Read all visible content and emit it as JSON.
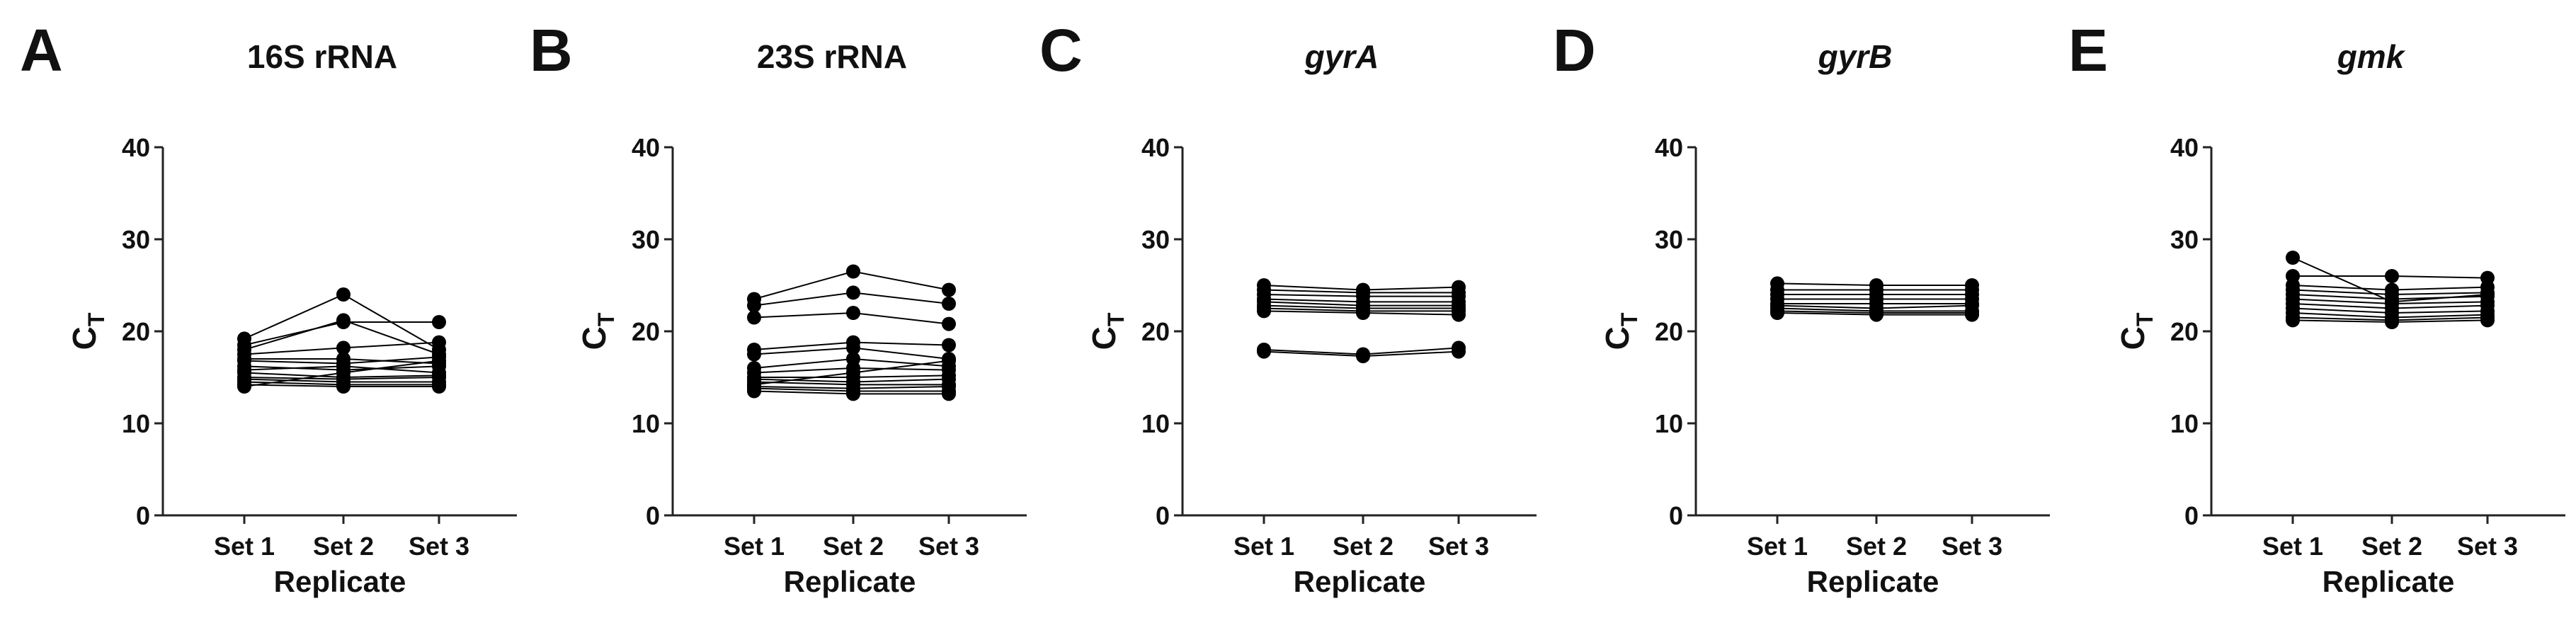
{
  "figure": {
    "panels": [
      {
        "letter": "A",
        "title": "16S rRNA",
        "italic": false
      },
      {
        "letter": "B",
        "title": "23S rRNA",
        "italic": false
      },
      {
        "letter": "C",
        "title": "gyrA",
        "italic": true
      },
      {
        "letter": "D",
        "title": "gyrB",
        "italic": true
      },
      {
        "letter": "E",
        "title": "gmk",
        "italic": true
      }
    ]
  },
  "chart_data": [
    {
      "type": "line",
      "title": "16S rRNA",
      "xlabel": "Replicate",
      "ylabel": "CT",
      "ylabel_main": "C",
      "ylabel_sub": "T",
      "categories": [
        "Set 1",
        "Set 2",
        "Set 3"
      ],
      "ylim": [
        0,
        40
      ],
      "yticks": [
        0,
        10,
        20,
        30,
        40
      ],
      "grid": false,
      "legend": "none",
      "marker_color": "#000000",
      "series": [
        {
          "values": [
            19.2,
            24.0,
            18.0
          ]
        },
        {
          "values": [
            18.5,
            21.0,
            21.0
          ]
        },
        {
          "values": [
            18.0,
            21.2,
            17.5
          ]
        },
        {
          "values": [
            17.5,
            18.2,
            18.8
          ]
        },
        {
          "values": [
            17.0,
            17.0,
            16.5
          ]
        },
        {
          "values": [
            16.8,
            16.5,
            17.2
          ]
        },
        {
          "values": [
            16.2,
            15.8,
            16.2
          ]
        },
        {
          "values": [
            15.8,
            16.2,
            15.5
          ]
        },
        {
          "values": [
            15.5,
            15.0,
            15.2
          ]
        },
        {
          "values": [
            15.0,
            14.8,
            15.0
          ]
        },
        {
          "values": [
            14.8,
            14.5,
            14.5
          ]
        },
        {
          "values": [
            14.5,
            14.2,
            14.2
          ]
        },
        {
          "values": [
            14.2,
            14.0,
            14.0
          ]
        },
        {
          "values": [
            14.0,
            15.5,
            16.8
          ]
        }
      ]
    },
    {
      "type": "line",
      "title": "23S rRNA",
      "xlabel": "Replicate",
      "ylabel": "CT",
      "ylabel_main": "C",
      "ylabel_sub": "T",
      "categories": [
        "Set 1",
        "Set 2",
        "Set 3"
      ],
      "ylim": [
        0,
        40
      ],
      "yticks": [
        0,
        10,
        20,
        30,
        40
      ],
      "grid": false,
      "legend": "none",
      "marker_color": "#000000",
      "series": [
        {
          "values": [
            23.5,
            26.5,
            24.5
          ]
        },
        {
          "values": [
            22.8,
            24.2,
            23.0
          ]
        },
        {
          "values": [
            21.5,
            22.0,
            20.8
          ]
        },
        {
          "values": [
            18.0,
            18.8,
            18.5
          ]
        },
        {
          "values": [
            17.5,
            18.2,
            17.0
          ]
        },
        {
          "values": [
            16.0,
            17.0,
            16.2
          ]
        },
        {
          "values": [
            15.5,
            16.0,
            15.8
          ]
        },
        {
          "values": [
            15.0,
            15.0,
            15.2
          ]
        },
        {
          "values": [
            14.8,
            14.5,
            14.8
          ]
        },
        {
          "values": [
            14.5,
            14.2,
            14.2
          ]
        },
        {
          "values": [
            14.0,
            13.8,
            14.0
          ]
        },
        {
          "values": [
            13.8,
            13.5,
            13.5
          ]
        },
        {
          "values": [
            13.5,
            13.2,
            13.2
          ]
        },
        {
          "values": [
            14.2,
            15.5,
            16.8
          ]
        }
      ]
    },
    {
      "type": "line",
      "title": "gyrA",
      "xlabel": "Replicate",
      "ylabel": "CT",
      "ylabel_main": "C",
      "ylabel_sub": "T",
      "categories": [
        "Set 1",
        "Set 2",
        "Set 3"
      ],
      "ylim": [
        0,
        40
      ],
      "yticks": [
        0,
        10,
        20,
        30,
        40
      ],
      "grid": false,
      "legend": "none",
      "marker_color": "#000000",
      "series": [
        {
          "values": [
            25.0,
            24.5,
            24.8
          ]
        },
        {
          "values": [
            24.5,
            24.2,
            24.2
          ]
        },
        {
          "values": [
            24.0,
            23.8,
            23.8
          ]
        },
        {
          "values": [
            23.5,
            23.2,
            23.2
          ]
        },
        {
          "values": [
            23.2,
            22.8,
            22.8
          ]
        },
        {
          "values": [
            22.8,
            22.5,
            22.5
          ]
        },
        {
          "values": [
            22.5,
            22.2,
            22.2
          ]
        },
        {
          "values": [
            22.2,
            22.0,
            21.8
          ]
        },
        {
          "values": [
            18.0,
            17.5,
            18.2
          ]
        },
        {
          "values": [
            17.8,
            17.3,
            17.8
          ]
        }
      ]
    },
    {
      "type": "line",
      "title": "gyrB",
      "xlabel": "Replicate",
      "ylabel": "CT",
      "ylabel_main": "C",
      "ylabel_sub": "T",
      "categories": [
        "Set 1",
        "Set 2",
        "Set 3"
      ],
      "ylim": [
        0,
        40
      ],
      "yticks": [
        0,
        10,
        20,
        30,
        40
      ],
      "grid": false,
      "legend": "none",
      "marker_color": "#000000",
      "series": [
        {
          "values": [
            25.2,
            25.0,
            25.0
          ]
        },
        {
          "values": [
            24.5,
            24.5,
            24.5
          ]
        },
        {
          "values": [
            24.0,
            24.0,
            24.0
          ]
        },
        {
          "values": [
            23.5,
            23.5,
            23.5
          ]
        },
        {
          "values": [
            23.0,
            23.0,
            23.0
          ]
        },
        {
          "values": [
            22.8,
            22.5,
            22.8
          ]
        },
        {
          "values": [
            22.5,
            22.2,
            22.2
          ]
        },
        {
          "values": [
            22.2,
            22.0,
            22.0
          ]
        },
        {
          "values": [
            22.0,
            21.8,
            21.8
          ]
        }
      ]
    },
    {
      "type": "line",
      "title": "gmk",
      "xlabel": "Replicate",
      "ylabel": "CT",
      "ylabel_main": "C",
      "ylabel_sub": "T",
      "categories": [
        "Set 1",
        "Set 2",
        "Set 3"
      ],
      "ylim": [
        0,
        40
      ],
      "yticks": [
        0,
        10,
        20,
        30,
        40
      ],
      "grid": false,
      "legend": "none",
      "marker_color": "#000000",
      "series": [
        {
          "values": [
            28.0,
            23.2,
            24.0
          ]
        },
        {
          "values": [
            26.0,
            26.0,
            25.8
          ]
        },
        {
          "values": [
            25.0,
            24.5,
            24.8
          ]
        },
        {
          "values": [
            24.5,
            24.0,
            24.2
          ]
        },
        {
          "values": [
            24.0,
            23.5,
            23.8
          ]
        },
        {
          "values": [
            23.5,
            23.0,
            23.2
          ]
        },
        {
          "values": [
            23.0,
            22.5,
            22.8
          ]
        },
        {
          "values": [
            22.5,
            22.0,
            22.2
          ]
        },
        {
          "values": [
            22.0,
            21.5,
            21.8
          ]
        },
        {
          "values": [
            21.5,
            21.2,
            21.5
          ]
        },
        {
          "values": [
            21.2,
            21.0,
            21.2
          ]
        }
      ]
    }
  ]
}
